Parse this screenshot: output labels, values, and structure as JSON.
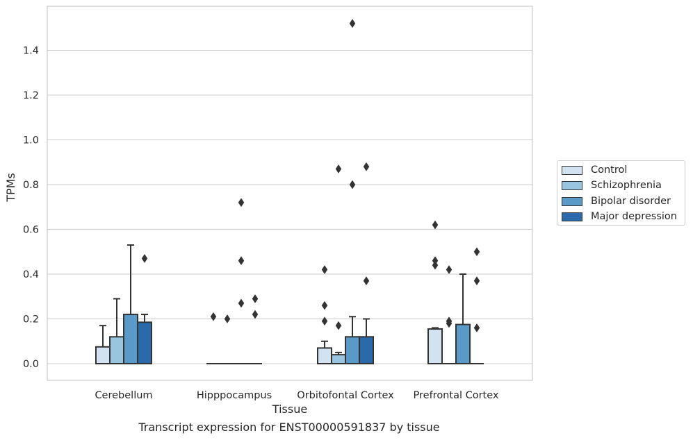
{
  "chart_data": {
    "type": "box",
    "xlabel": "Tissue",
    "ylabel": "TPMs",
    "caption": "Transcript expression for ENST00000591837 by tissue",
    "categories": [
      "Cerebellum",
      "Hipppocampus",
      "Orbitofontal Cortex",
      "Prefrontal Cortex"
    ],
    "yticks": [
      "0.0",
      "0.2",
      "0.4",
      "0.6",
      "0.8",
      "1.0",
      "1.2",
      "1.4"
    ],
    "ylim": [
      -0.075,
      1.595
    ],
    "grid": true,
    "legend_position": "right",
    "series": [
      {
        "name": "Control",
        "color": "#d2e2f1",
        "boxes": [
          {
            "q1": 0.0,
            "median": 0.0,
            "q3": 0.075,
            "whisker_low": 0.0,
            "whisker_high": 0.17,
            "outliers": []
          },
          {
            "q1": 0.0,
            "median": 0.0,
            "q3": 0.0,
            "whisker_low": 0.0,
            "whisker_high": 0.0,
            "outliers": [
              0.21
            ]
          },
          {
            "q1": 0.0,
            "median": 0.0,
            "q3": 0.07,
            "whisker_low": 0.0,
            "whisker_high": 0.1,
            "outliers": [
              0.19,
              0.26,
              0.42
            ]
          },
          {
            "q1": 0.0,
            "median": 0.0,
            "q3": 0.155,
            "whisker_low": 0.0,
            "whisker_high": 0.16,
            "outliers": [
              0.44,
              0.46,
              0.62
            ]
          }
        ]
      },
      {
        "name": "Schizophrenia",
        "color": "#9ac5e0",
        "boxes": [
          {
            "q1": 0.0,
            "median": 0.0,
            "q3": 0.12,
            "whisker_low": 0.0,
            "whisker_high": 0.29,
            "outliers": []
          },
          {
            "q1": 0.0,
            "median": 0.0,
            "q3": 0.0,
            "whisker_low": 0.0,
            "whisker_high": 0.0,
            "outliers": [
              0.2
            ]
          },
          {
            "q1": 0.0,
            "median": 0.0,
            "q3": 0.04,
            "whisker_low": 0.0,
            "whisker_high": 0.05,
            "outliers": [
              0.17,
              0.87
            ]
          },
          {
            "q1": 0.0,
            "median": 0.0,
            "q3": 0.0,
            "whisker_low": 0.0,
            "whisker_high": 0.0,
            "outliers": [
              0.18,
              0.19,
              0.42
            ]
          }
        ]
      },
      {
        "name": "Bipolar disorder",
        "color": "#5a9ac8",
        "boxes": [
          {
            "q1": 0.0,
            "median": 0.0,
            "q3": 0.22,
            "whisker_low": 0.0,
            "whisker_high": 0.53,
            "outliers": []
          },
          {
            "q1": 0.0,
            "median": 0.0,
            "q3": 0.0,
            "whisker_low": 0.0,
            "whisker_high": 0.0,
            "outliers": [
              0.27,
              0.46,
              0.72
            ]
          },
          {
            "q1": 0.0,
            "median": 0.0,
            "q3": 0.12,
            "whisker_low": 0.0,
            "whisker_high": 0.21,
            "outliers": [
              0.8,
              1.52
            ]
          },
          {
            "q1": 0.0,
            "median": 0.0,
            "q3": 0.175,
            "whisker_low": 0.0,
            "whisker_high": 0.4,
            "outliers": []
          }
        ]
      },
      {
        "name": "Major depression",
        "color": "#2a69aa",
        "boxes": [
          {
            "q1": 0.0,
            "median": 0.0,
            "q3": 0.185,
            "whisker_low": 0.0,
            "whisker_high": 0.22,
            "outliers": [
              0.47
            ]
          },
          {
            "q1": 0.0,
            "median": 0.0,
            "q3": 0.0,
            "whisker_low": 0.0,
            "whisker_high": 0.0,
            "outliers": [
              0.22,
              0.29
            ]
          },
          {
            "q1": 0.0,
            "median": 0.0,
            "q3": 0.12,
            "whisker_low": 0.0,
            "whisker_high": 0.2,
            "outliers": [
              0.37,
              0.88
            ]
          },
          {
            "q1": 0.0,
            "median": 0.0,
            "q3": 0.0,
            "whisker_low": 0.0,
            "whisker_high": 0.0,
            "outliers": [
              0.16,
              0.37,
              0.5
            ]
          }
        ]
      }
    ]
  }
}
